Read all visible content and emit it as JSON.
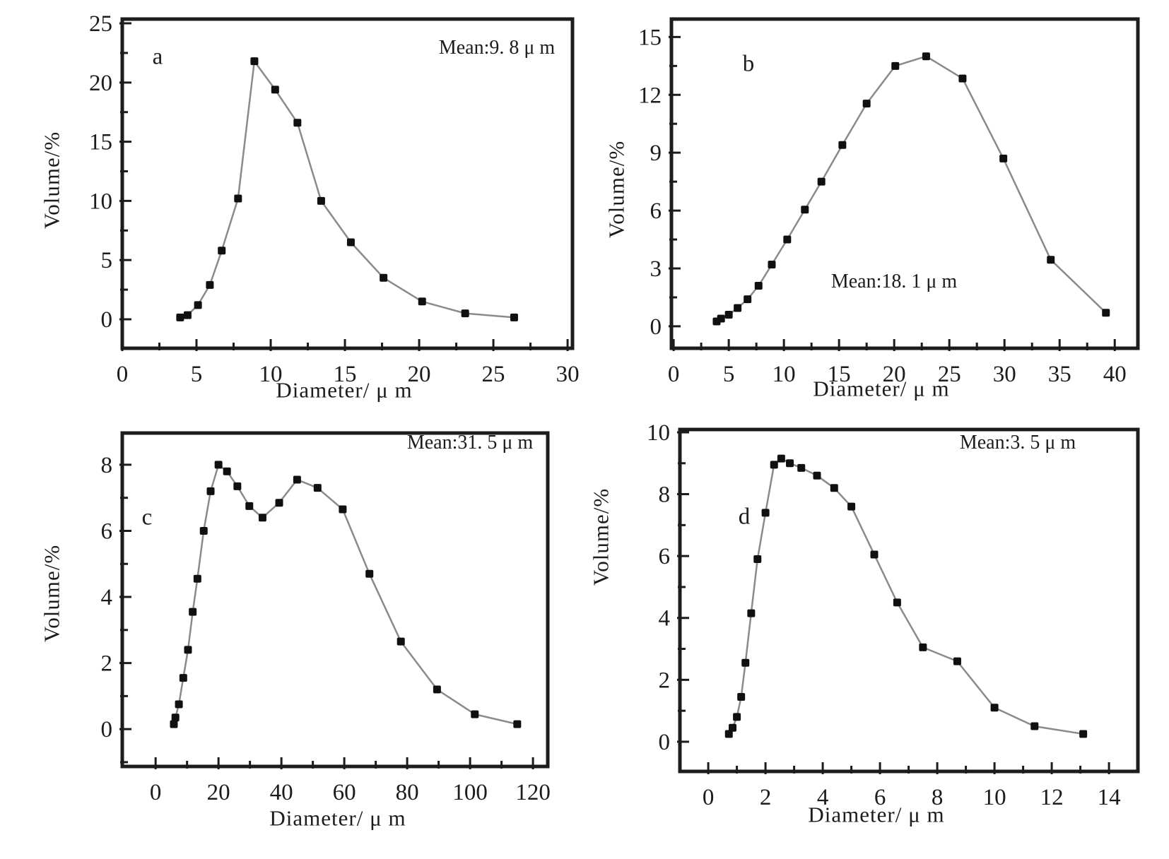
{
  "figure": {
    "background": "#ffffff",
    "ink_color": "#1c1c1c",
    "line_color": "#8a8a8a",
    "marker_color": "#101010"
  },
  "chart_data": [
    {
      "id": "a",
      "type": "line",
      "panel_label": "a",
      "annotation": "Mean:9. 8 μ m",
      "xlabel": "Diameter/ μ m",
      "ylabel": "Volume/%",
      "legend": "none",
      "grid": false,
      "x_ticks": [
        0,
        5,
        10,
        15,
        20,
        25,
        30
      ],
      "x_minor_step": 2.5,
      "y_ticks": [
        0,
        5,
        10,
        15,
        20,
        25
      ],
      "y_minor_step": 2.5,
      "xlim": [
        0,
        30.33
      ],
      "ylim": [
        -2.45,
        25.36
      ],
      "x": [
        3.9,
        4.4,
        5.1,
        5.9,
        6.7,
        7.8,
        8.9,
        10.3,
        11.8,
        13.4,
        15.4,
        17.6,
        20.2,
        23.1,
        26.4
      ],
      "y": [
        0.15,
        0.35,
        1.2,
        2.9,
        5.8,
        10.2,
        21.8,
        19.4,
        16.6,
        10.0,
        6.5,
        3.5,
        1.5,
        0.5,
        0.15
      ]
    },
    {
      "id": "b",
      "type": "line",
      "panel_label": "b",
      "annotation": "Mean:18. 1 μ m",
      "xlabel": "Diameter/ μ m",
      "ylabel": "Volume/%",
      "legend": "none",
      "grid": false,
      "x_ticks": [
        0,
        5,
        10,
        15,
        20,
        25,
        30,
        35,
        40
      ],
      "x_minor_step": 2.5,
      "y_ticks": [
        0,
        3,
        6,
        9,
        12,
        15
      ],
      "y_minor_step": 1.5,
      "xlim": [
        -0.2,
        42.1
      ],
      "ylim": [
        -1.14,
        15.93
      ],
      "x": [
        3.9,
        4.3,
        5.0,
        5.8,
        6.7,
        7.7,
        8.9,
        10.3,
        11.9,
        13.4,
        15.3,
        17.5,
        20.1,
        22.9,
        26.2,
        29.9,
        34.2,
        39.2
      ],
      "y": [
        0.25,
        0.4,
        0.6,
        0.95,
        1.4,
        2.1,
        3.2,
        4.5,
        6.05,
        7.5,
        9.4,
        11.55,
        13.5,
        14.0,
        12.85,
        8.7,
        3.45,
        0.7
      ]
    },
    {
      "id": "c",
      "type": "line",
      "panel_label": "c",
      "annotation": "Mean:31. 5 μ m",
      "xlabel": "Diameter/ μ m",
      "ylabel": "Volume/%",
      "legend": "none",
      "grid": false,
      "x_ticks": [
        0,
        20,
        40,
        60,
        80,
        100,
        120
      ],
      "x_minor_step": 10,
      "y_ticks": [
        0,
        2,
        4,
        6,
        8
      ],
      "y_minor_step": 1,
      "xlim": [
        -10.6,
        124.7
      ],
      "ylim": [
        -1.13,
        8.96
      ],
      "x": [
        5.8,
        6.3,
        7.4,
        8.8,
        10.3,
        11.8,
        13.3,
        15.3,
        17.5,
        20.0,
        22.7,
        26.0,
        29.8,
        34.0,
        39.3,
        45.0,
        51.5,
        59.5,
        68.0,
        78.0,
        89.5,
        101.5,
        115.0
      ],
      "y": [
        0.15,
        0.35,
        0.75,
        1.55,
        2.4,
        3.55,
        4.55,
        6.0,
        7.2,
        8.0,
        7.8,
        7.35,
        6.75,
        6.4,
        6.85,
        7.55,
        7.3,
        6.65,
        4.7,
        2.65,
        1.2,
        0.45,
        0.15
      ]
    },
    {
      "id": "d",
      "type": "line",
      "panel_label": "d",
      "annotation": "Mean:3. 5 μ m",
      "xlabel": "Diameter/ μ m",
      "ylabel": "Volume/%",
      "legend": "none",
      "grid": false,
      "x_ticks": [
        0,
        2,
        4,
        6,
        8,
        10,
        12,
        14
      ],
      "x_minor_step": 1,
      "y_ticks": [
        0,
        2,
        4,
        6,
        8,
        10
      ],
      "y_minor_step": 1,
      "xlim": [
        -0.99,
        15.01
      ],
      "ylim": [
        -0.96,
        10.09
      ],
      "x": [
        0.72,
        0.85,
        1.0,
        1.15,
        1.3,
        1.5,
        1.72,
        2.0,
        2.3,
        2.55,
        2.85,
        3.25,
        3.8,
        4.4,
        5.0,
        5.8,
        6.6,
        7.5,
        8.7,
        10.0,
        11.4,
        13.1
      ],
      "y": [
        0.25,
        0.45,
        0.8,
        1.45,
        2.55,
        4.15,
        5.9,
        7.4,
        8.95,
        9.15,
        9.0,
        8.85,
        8.6,
        8.2,
        7.6,
        6.05,
        4.5,
        3.05,
        2.6,
        1.1,
        0.5,
        0.25
      ]
    }
  ]
}
